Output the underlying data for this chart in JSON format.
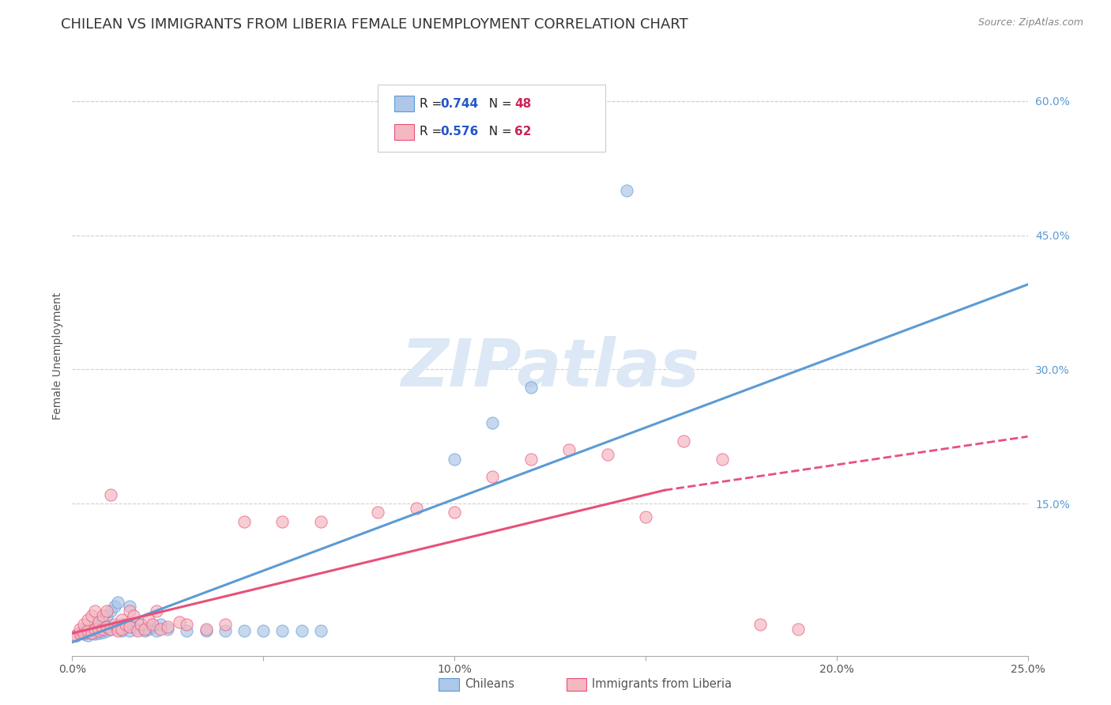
{
  "title": "CHILEAN VS IMMIGRANTS FROM LIBERIA FEMALE UNEMPLOYMENT CORRELATION CHART",
  "source": "Source: ZipAtlas.com",
  "ylabel": "Female Unemployment",
  "watermark": "ZIPatlas",
  "xlim": [
    0.0,
    0.25
  ],
  "ylim": [
    -0.02,
    0.65
  ],
  "xticks": [
    0.0,
    0.05,
    0.1,
    0.15,
    0.2,
    0.25
  ],
  "xticklabels": [
    "0.0%",
    "",
    "10.0%",
    "",
    "20.0%",
    "25.0%"
  ],
  "yticks_right": [
    0.15,
    0.3,
    0.45,
    0.6
  ],
  "yticklabels_right": [
    "15.0%",
    "30.0%",
    "45.0%",
    "60.0%"
  ],
  "chileans_color": "#aec6e8",
  "liberia_color": "#f4b8c1",
  "blue_line_color": "#5b9bd5",
  "pink_line_color": "#e8507a",
  "chileans_scatter": [
    [
      0.001,
      0.003
    ],
    [
      0.002,
      0.005
    ],
    [
      0.003,
      0.004
    ],
    [
      0.003,
      0.008
    ],
    [
      0.004,
      0.003
    ],
    [
      0.004,
      0.006
    ],
    [
      0.005,
      0.005
    ],
    [
      0.005,
      0.01
    ],
    [
      0.006,
      0.004
    ],
    [
      0.006,
      0.008
    ],
    [
      0.007,
      0.005
    ],
    [
      0.007,
      0.012
    ],
    [
      0.008,
      0.006
    ],
    [
      0.008,
      0.02
    ],
    [
      0.009,
      0.008
    ],
    [
      0.009,
      0.025
    ],
    [
      0.01,
      0.01
    ],
    [
      0.01,
      0.03
    ],
    [
      0.011,
      0.012
    ],
    [
      0.011,
      0.035
    ],
    [
      0.012,
      0.01
    ],
    [
      0.012,
      0.04
    ],
    [
      0.013,
      0.015
    ],
    [
      0.013,
      0.008
    ],
    [
      0.014,
      0.012
    ],
    [
      0.015,
      0.008
    ],
    [
      0.015,
      0.035
    ],
    [
      0.016,
      0.012
    ],
    [
      0.017,
      0.01
    ],
    [
      0.018,
      0.015
    ],
    [
      0.019,
      0.008
    ],
    [
      0.02,
      0.01
    ],
    [
      0.021,
      0.012
    ],
    [
      0.022,
      0.008
    ],
    [
      0.023,
      0.015
    ],
    [
      0.025,
      0.01
    ],
    [
      0.03,
      0.008
    ],
    [
      0.035,
      0.008
    ],
    [
      0.04,
      0.008
    ],
    [
      0.045,
      0.008
    ],
    [
      0.05,
      0.008
    ],
    [
      0.055,
      0.008
    ],
    [
      0.06,
      0.008
    ],
    [
      0.065,
      0.008
    ],
    [
      0.1,
      0.2
    ],
    [
      0.11,
      0.24
    ],
    [
      0.12,
      0.28
    ],
    [
      0.145,
      0.5
    ]
  ],
  "liberia_scatter": [
    [
      0.001,
      0.003
    ],
    [
      0.002,
      0.005
    ],
    [
      0.002,
      0.01
    ],
    [
      0.003,
      0.005
    ],
    [
      0.003,
      0.015
    ],
    [
      0.004,
      0.008
    ],
    [
      0.004,
      0.02
    ],
    [
      0.005,
      0.005
    ],
    [
      0.005,
      0.025
    ],
    [
      0.006,
      0.01
    ],
    [
      0.006,
      0.03
    ],
    [
      0.007,
      0.008
    ],
    [
      0.007,
      0.018
    ],
    [
      0.008,
      0.01
    ],
    [
      0.008,
      0.025
    ],
    [
      0.009,
      0.012
    ],
    [
      0.009,
      0.03
    ],
    [
      0.01,
      0.01
    ],
    [
      0.01,
      0.16
    ],
    [
      0.011,
      0.015
    ],
    [
      0.012,
      0.012
    ],
    [
      0.012,
      0.008
    ],
    [
      0.013,
      0.02
    ],
    [
      0.013,
      0.01
    ],
    [
      0.014,
      0.015
    ],
    [
      0.015,
      0.012
    ],
    [
      0.015,
      0.03
    ],
    [
      0.016,
      0.025
    ],
    [
      0.017,
      0.008
    ],
    [
      0.018,
      0.015
    ],
    [
      0.019,
      0.01
    ],
    [
      0.02,
      0.02
    ],
    [
      0.021,
      0.015
    ],
    [
      0.022,
      0.03
    ],
    [
      0.023,
      0.01
    ],
    [
      0.025,
      0.012
    ],
    [
      0.028,
      0.018
    ],
    [
      0.03,
      0.015
    ],
    [
      0.035,
      0.01
    ],
    [
      0.04,
      0.015
    ],
    [
      0.045,
      0.13
    ],
    [
      0.055,
      0.13
    ],
    [
      0.065,
      0.13
    ],
    [
      0.08,
      0.14
    ],
    [
      0.09,
      0.145
    ],
    [
      0.1,
      0.14
    ],
    [
      0.11,
      0.18
    ],
    [
      0.12,
      0.2
    ],
    [
      0.13,
      0.21
    ],
    [
      0.14,
      0.205
    ],
    [
      0.15,
      0.135
    ],
    [
      0.16,
      0.22
    ],
    [
      0.17,
      0.2
    ],
    [
      0.18,
      0.015
    ],
    [
      0.19,
      0.01
    ]
  ],
  "blue_line": {
    "x0": 0.0,
    "y0": -0.005,
    "x1": 0.25,
    "y1": 0.395
  },
  "pink_line_solid": {
    "x0": 0.0,
    "y0": 0.005,
    "x1": 0.155,
    "y1": 0.165
  },
  "pink_line_dashed": {
    "x0": 0.155,
    "y0": 0.165,
    "x1": 0.25,
    "y1": 0.225
  },
  "background_color": "#ffffff",
  "grid_color": "#d0d0d0",
  "title_fontsize": 13,
  "axis_label_fontsize": 10,
  "tick_fontsize": 10,
  "watermark_color": "#dce8f5",
  "watermark_fontsize": 60,
  "legend_R_color": "#2255cc",
  "legend_N_color": "#cc2255"
}
